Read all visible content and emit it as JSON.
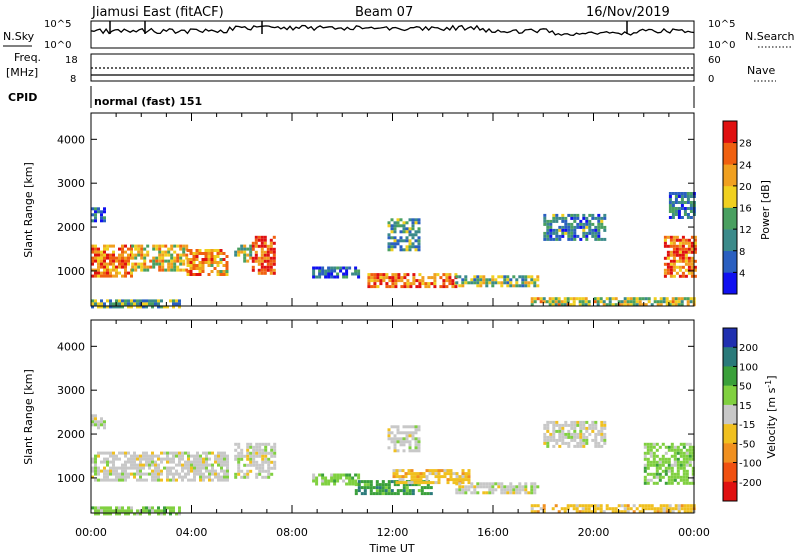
{
  "header": {
    "radar": "Jiamusi East (fitACF)",
    "beam": "Beam 07",
    "date": "16/Nov/2019"
  },
  "nsky_panel": {
    "left_label": "N.Sky",
    "right_label": "N.Search",
    "left_ticks": [
      "10^5",
      "10^0"
    ],
    "right_ticks": [
      "10^5",
      "10^0"
    ]
  },
  "freq_panel": {
    "left_label_line1": "Freq.",
    "left_label_line2": "[MHz]",
    "left_ticks": [
      "18",
      "8"
    ],
    "right_label": "Nave",
    "right_ticks": [
      "60",
      "0"
    ]
  },
  "cpid_panel": {
    "label": "CPID",
    "mode_text": "normal (fast) 151"
  },
  "chart_data": [
    {
      "type": "heatmap",
      "name": "power",
      "ylabel": "Slant Range [km]",
      "y_ticks": [
        "1000",
        "2000",
        "3000",
        "4000"
      ],
      "ylim": [
        200,
        4600
      ],
      "xlim": [
        0,
        24
      ],
      "colorbar": {
        "label": "Power [dB]",
        "ticks": [
          "4",
          "8",
          "12",
          "16",
          "20",
          "24",
          "28"
        ],
        "range": [
          0,
          32
        ],
        "colors": [
          "#1010f0",
          "#2a5fc0",
          "#3b8a8a",
          "#4aa060",
          "#f0d020",
          "#f0a020",
          "#f06010",
          "#e01010"
        ]
      },
      "echo_regions": [
        {
          "x0": 0.0,
          "x1": 1.6,
          "y0": 900,
          "y1": 1600,
          "level": 0.75
        },
        {
          "x0": 1.6,
          "x1": 3.8,
          "y0": 1050,
          "y1": 1600,
          "level": 0.6
        },
        {
          "x0": 3.8,
          "x1": 5.4,
          "y0": 950,
          "y1": 1500,
          "level": 0.7
        },
        {
          "x0": 5.7,
          "x1": 6.4,
          "y0": 1200,
          "y1": 1600,
          "level": 0.5
        },
        {
          "x0": 6.4,
          "x1": 7.3,
          "y0": 950,
          "y1": 1800,
          "level": 0.85
        },
        {
          "x0": 0.0,
          "x1": 0.5,
          "y0": 2150,
          "y1": 2450,
          "level": 0.25
        },
        {
          "x0": 8.8,
          "x1": 10.6,
          "y0": 850,
          "y1": 1100,
          "level": 0.2
        },
        {
          "x0": 11.8,
          "x1": 13.0,
          "y0": 1500,
          "y1": 2200,
          "level": 0.35
        },
        {
          "x0": 11.0,
          "x1": 14.5,
          "y0": 650,
          "y1": 950,
          "level": 0.75
        },
        {
          "x0": 14.5,
          "x1": 17.8,
          "y0": 650,
          "y1": 900,
          "level": 0.45
        },
        {
          "x0": 18.0,
          "x1": 20.5,
          "y0": 1700,
          "y1": 2300,
          "level": 0.3
        },
        {
          "x0": 22.8,
          "x1": 24.0,
          "y0": 900,
          "y1": 1800,
          "level": 0.8
        },
        {
          "x0": 23.0,
          "x1": 24.0,
          "y0": 2200,
          "y1": 2800,
          "level": 0.25
        },
        {
          "x0": 0.0,
          "x1": 3.5,
          "y0": 200,
          "y1": 350,
          "level": 0.4
        },
        {
          "x0": 17.5,
          "x1": 24.0,
          "y0": 200,
          "y1": 400,
          "level": 0.55
        }
      ]
    },
    {
      "type": "heatmap",
      "name": "velocity",
      "ylabel": "Slant Range [km]",
      "y_ticks": [
        "1000",
        "2000",
        "3000",
        "4000"
      ],
      "ylim": [
        200,
        4600
      ],
      "xlim": [
        0,
        24
      ],
      "xlabel": "Time UT",
      "x_ticks": [
        "00:00",
        "04:00",
        "08:00",
        "12:00",
        "16:00",
        "20:00",
        "00:00"
      ],
      "colorbar": {
        "label": "Velocity [m s^-1]",
        "ticks": [
          "200",
          "100",
          "50",
          "15",
          "-15",
          "-50",
          "-100",
          "-200"
        ],
        "range": [
          -250,
          250
        ],
        "colors": [
          "#2030b0",
          "#2a7a7a",
          "#3aa03a",
          "#80d040",
          "#c8c8c8",
          "#f0c020",
          "#f09020",
          "#f05010",
          "#e01010"
        ]
      },
      "echo_regions": [
        {
          "x0": 0.0,
          "x1": 5.4,
          "y0": 950,
          "y1": 1600,
          "color_index": 4
        },
        {
          "x0": 5.7,
          "x1": 7.3,
          "y0": 1000,
          "y1": 1800,
          "color_index": 4
        },
        {
          "x0": 0.0,
          "x1": 0.5,
          "y0": 2150,
          "y1": 2450,
          "color_index": 4
        },
        {
          "x0": 8.8,
          "x1": 10.6,
          "y0": 850,
          "y1": 1100,
          "color_index": 3
        },
        {
          "x0": 11.8,
          "x1": 13.0,
          "y0": 1600,
          "y1": 2200,
          "color_index": 4
        },
        {
          "x0": 10.5,
          "x1": 13.5,
          "y0": 650,
          "y1": 950,
          "color_index": 2
        },
        {
          "x0": 12.0,
          "x1": 15.0,
          "y0": 900,
          "y1": 1200,
          "color_index": 5
        },
        {
          "x0": 14.5,
          "x1": 17.8,
          "y0": 650,
          "y1": 900,
          "color_index": 4
        },
        {
          "x0": 18.0,
          "x1": 20.5,
          "y0": 1700,
          "y1": 2300,
          "color_index": 4
        },
        {
          "x0": 22.0,
          "x1": 24.0,
          "y0": 900,
          "y1": 1800,
          "color_index": 3
        },
        {
          "x0": 0.0,
          "x1": 3.5,
          "y0": 200,
          "y1": 350,
          "color_index": 3
        },
        {
          "x0": 17.5,
          "x1": 24.0,
          "y0": 200,
          "y1": 400,
          "color_index": 5
        }
      ]
    }
  ]
}
